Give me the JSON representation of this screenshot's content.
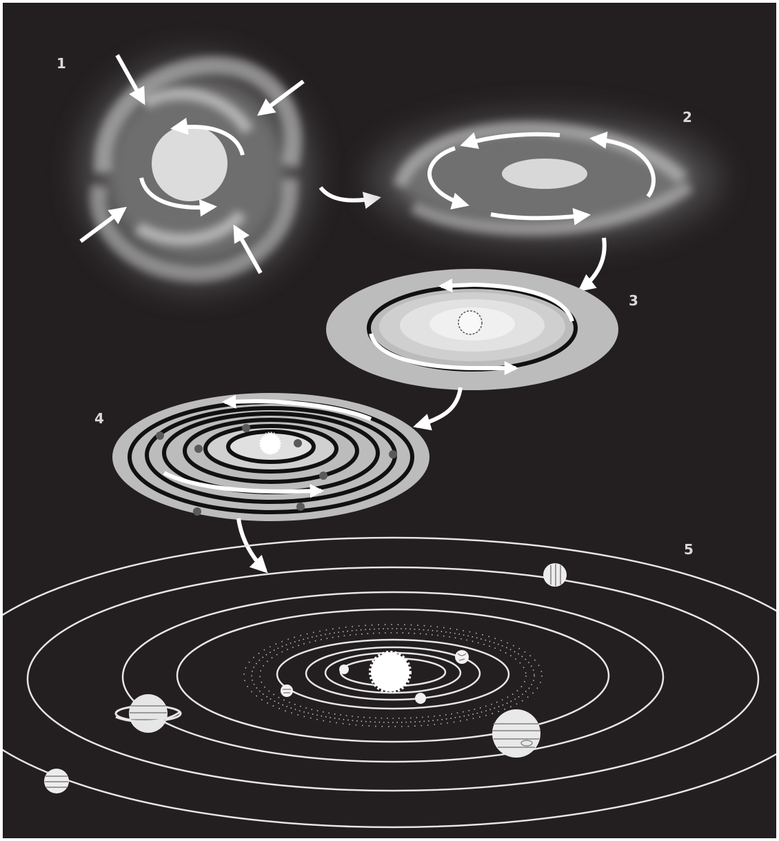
{
  "colors": {
    "background": "#231f20",
    "cloud": "#d8d8d8",
    "disk": "#bfbfbf",
    "orbit": "#e6e6e6",
    "arrow": "#ffffff"
  },
  "stages": [
    {
      "number": "1",
      "icon": "collapsing-cloud"
    },
    {
      "number": "2",
      "icon": "flattening-spinning-disk"
    },
    {
      "number": "3",
      "icon": "protoplanetary-disk"
    },
    {
      "number": "4",
      "icon": "planetesimal-rings"
    },
    {
      "number": "5",
      "icon": "solar-system"
    }
  ]
}
